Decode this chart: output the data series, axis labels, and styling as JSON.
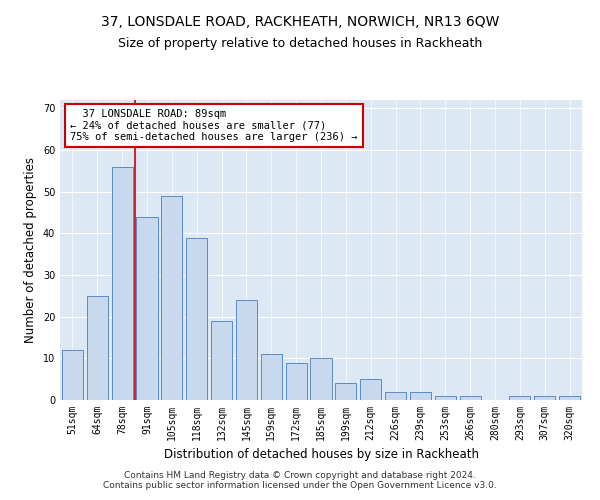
{
  "title": "37, LONSDALE ROAD, RACKHEATH, NORWICH, NR13 6QW",
  "subtitle": "Size of property relative to detached houses in Rackheath",
  "xlabel": "Distribution of detached houses by size in Rackheath",
  "ylabel": "Number of detached properties",
  "categories": [
    "51sqm",
    "64sqm",
    "78sqm",
    "91sqm",
    "105sqm",
    "118sqm",
    "132sqm",
    "145sqm",
    "159sqm",
    "172sqm",
    "185sqm",
    "199sqm",
    "212sqm",
    "226sqm",
    "239sqm",
    "253sqm",
    "266sqm",
    "280sqm",
    "293sqm",
    "307sqm",
    "320sqm"
  ],
  "values": [
    12,
    25,
    56,
    44,
    49,
    39,
    19,
    24,
    11,
    9,
    10,
    4,
    5,
    2,
    2,
    1,
    1,
    0,
    1,
    1,
    1
  ],
  "bar_color": "#c9d9ed",
  "bar_edge_color": "#5a8ac6",
  "vline_x": 2.5,
  "vline_color": "#cc0000",
  "annotation_text": "  37 LONSDALE ROAD: 89sqm\n← 24% of detached houses are smaller (77)\n75% of semi-detached houses are larger (236) →",
  "annotation_box_color": "#ffffff",
  "annotation_box_edge": "#cc0000",
  "ylim": [
    0,
    72
  ],
  "yticks": [
    0,
    10,
    20,
    30,
    40,
    50,
    60,
    70
  ],
  "background_color": "#dce9f5",
  "footer_text": "Contains HM Land Registry data © Crown copyright and database right 2024.\nContains public sector information licensed under the Open Government Licence v3.0.",
  "title_fontsize": 10,
  "subtitle_fontsize": 9,
  "xlabel_fontsize": 8.5,
  "ylabel_fontsize": 8.5,
  "tick_fontsize": 7,
  "annotation_fontsize": 7.5,
  "footer_fontsize": 6.5
}
